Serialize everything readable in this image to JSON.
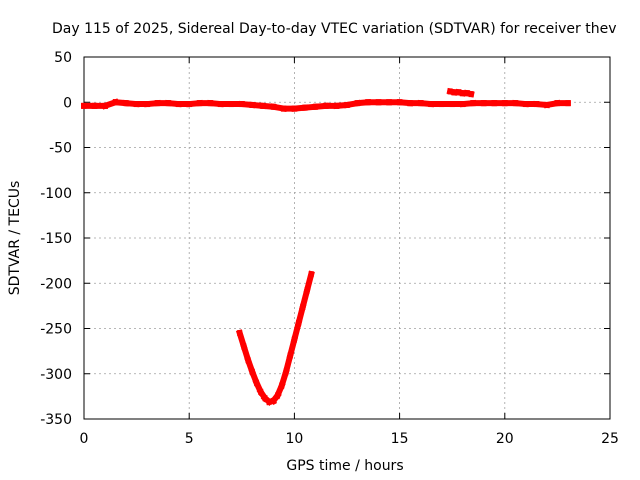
{
  "chart_data": {
    "type": "scatter",
    "title": "Day 115 of 2025, Sidereal Day-to-day VTEC variation (SDTVAR) for receiver thev",
    "xlabel": "GPS time / hours",
    "ylabel": "SDTVAR / TECUs",
    "xlim": [
      0,
      25
    ],
    "ylim": [
      -350,
      50
    ],
    "xticks": [
      0,
      5,
      10,
      15,
      20,
      25
    ],
    "yticks": [
      50,
      0,
      -50,
      -100,
      -150,
      -200,
      -250,
      -300,
      -350
    ],
    "grid": true,
    "point_color": "#ff0000",
    "series": [
      {
        "name": "main-trace",
        "points": [
          [
            0.0,
            -4
          ],
          [
            0.5,
            -4
          ],
          [
            1.0,
            -4
          ],
          [
            1.5,
            0
          ],
          [
            2.0,
            -1
          ],
          [
            2.5,
            -2
          ],
          [
            3.0,
            -2
          ],
          [
            3.5,
            -1
          ],
          [
            4.0,
            -1
          ],
          [
            4.5,
            -2
          ],
          [
            5.0,
            -2
          ],
          [
            5.5,
            -1
          ],
          [
            6.0,
            -1
          ],
          [
            6.5,
            -2
          ],
          [
            7.0,
            -2
          ],
          [
            7.5,
            -2
          ],
          [
            8.0,
            -3
          ],
          [
            8.5,
            -4
          ],
          [
            9.0,
            -5
          ],
          [
            9.5,
            -7
          ],
          [
            10.0,
            -7
          ],
          [
            10.5,
            -6
          ],
          [
            11.0,
            -5
          ],
          [
            11.5,
            -4
          ],
          [
            12.0,
            -4
          ],
          [
            12.5,
            -3
          ],
          [
            13.0,
            -1
          ],
          [
            13.5,
            0
          ],
          [
            14.0,
            0
          ],
          [
            14.5,
            0
          ],
          [
            15.0,
            0
          ],
          [
            15.5,
            -1
          ],
          [
            16.0,
            -1
          ],
          [
            16.5,
            -2
          ],
          [
            17.0,
            -2
          ],
          [
            17.5,
            -2
          ],
          [
            18.0,
            -2
          ],
          [
            18.5,
            -1
          ],
          [
            19.0,
            -1
          ],
          [
            19.5,
            -1
          ],
          [
            20.0,
            -1
          ],
          [
            20.5,
            -1
          ],
          [
            21.0,
            -2
          ],
          [
            21.5,
            -2
          ],
          [
            22.0,
            -3
          ],
          [
            22.5,
            -1
          ],
          [
            23.0,
            -1
          ]
        ]
      },
      {
        "name": "upper-segment",
        "points": [
          [
            17.4,
            12
          ],
          [
            17.6,
            11
          ],
          [
            17.8,
            11
          ],
          [
            18.0,
            10
          ],
          [
            18.2,
            10
          ],
          [
            18.4,
            9
          ]
        ]
      },
      {
        "name": "dip-segment",
        "points": [
          [
            7.4,
            -255
          ],
          [
            7.6,
            -270
          ],
          [
            7.8,
            -285
          ],
          [
            8.0,
            -298
          ],
          [
            8.2,
            -310
          ],
          [
            8.4,
            -320
          ],
          [
            8.6,
            -327
          ],
          [
            8.8,
            -331
          ],
          [
            9.0,
            -330
          ],
          [
            9.2,
            -324
          ],
          [
            9.4,
            -313
          ],
          [
            9.6,
            -298
          ],
          [
            9.8,
            -280
          ],
          [
            10.0,
            -262
          ],
          [
            10.2,
            -244
          ],
          [
            10.4,
            -226
          ],
          [
            10.6,
            -208
          ],
          [
            10.8,
            -190
          ]
        ]
      }
    ]
  }
}
